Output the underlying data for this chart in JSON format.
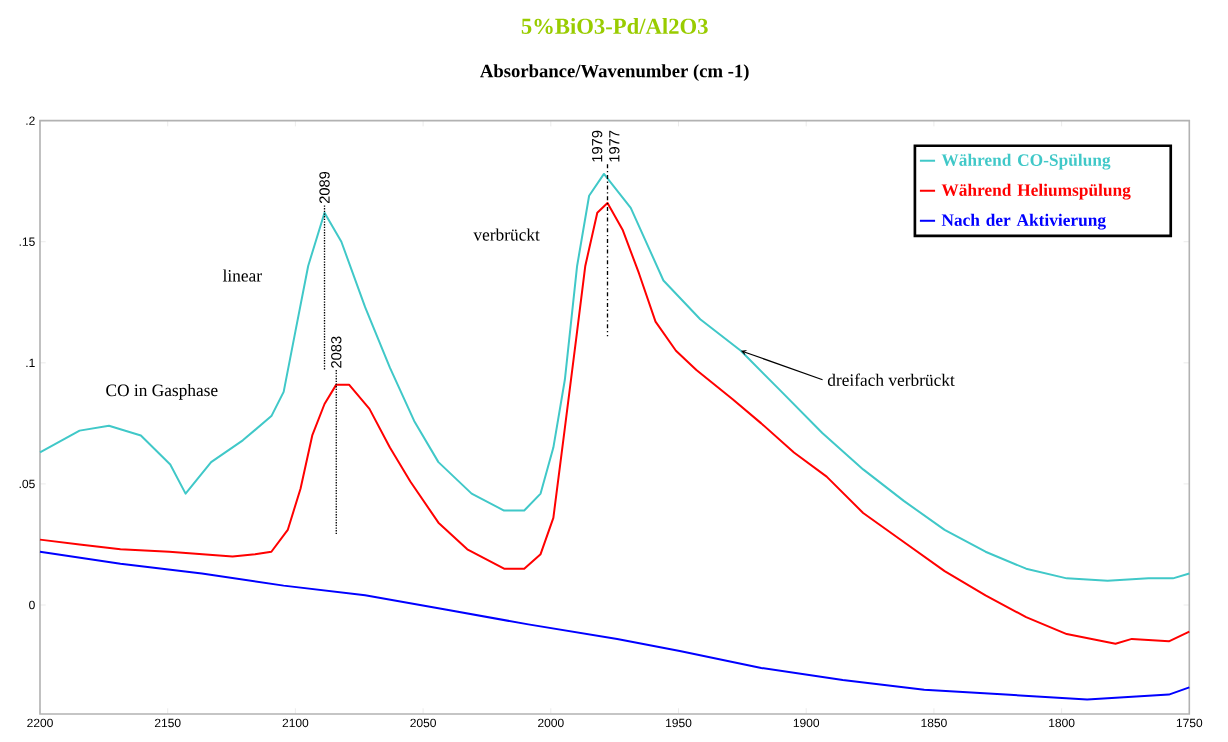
{
  "chart_data": {
    "type": "line",
    "title": "5%BiO3-Pd/Al2O3",
    "subtitle": "Absorbance/Wavenumber (cm -1)",
    "xlim": [
      2200,
      1750
    ],
    "xticks": [
      2200,
      2150,
      2100,
      2050,
      2000,
      1950,
      1900,
      1850,
      1800,
      1750
    ],
    "ylim": [
      -0.045,
      0.2
    ],
    "yticks": [
      {
        "value": 0,
        "label": "0"
      },
      {
        "value": 0.05,
        "label": ".05"
      },
      {
        "value": 0.1,
        "label": ".1"
      },
      {
        "value": 0.15,
        "label": ".15"
      },
      {
        "value": 0.2,
        "label": ".2"
      }
    ],
    "grid": false,
    "legend": "top right",
    "marker": "none",
    "line_style": "solid",
    "series": [
      {
        "name": "Während CO-Spülung",
        "color": "#40c8c8",
        "x": [
          2200,
          2184.5,
          2173,
          2160.5,
          2149,
          2143,
          2133,
          2120.6,
          2109.4,
          2104.6,
          2100,
          2095,
          2088.6,
          2082,
          2072.7,
          2063,
          2053.5,
          2044,
          2031,
          2018.3,
          2010.4,
          2004,
          1999,
          1994.5,
          1989.7,
          1985,
          1979.2,
          1968.7,
          1955.9,
          1941.5,
          1925.6,
          1909.6,
          1893.7,
          1877.7,
          1861.8,
          1845.8,
          1829.8,
          1813.9,
          1798,
          1782,
          1766,
          1756.4,
          1750
        ],
        "values": [
          0.063,
          0.072,
          0.074,
          0.07,
          0.058,
          0.046,
          0.059,
          0.068,
          0.078,
          0.088,
          0.113,
          0.14,
          0.162,
          0.15,
          0.123,
          0.098,
          0.076,
          0.059,
          0.046,
          0.039,
          0.039,
          0.046,
          0.065,
          0.093,
          0.14,
          0.169,
          0.178,
          0.164,
          0.134,
          0.118,
          0.105,
          0.088,
          0.071,
          0.056,
          0.043,
          0.031,
          0.022,
          0.015,
          0.011,
          0.01,
          0.011,
          0.011,
          0.013
        ]
      },
      {
        "name": "Während Heliumspülung",
        "color": "#ff0000",
        "x": [
          2200,
          2184.5,
          2168.5,
          2149.4,
          2124.6,
          2115.8,
          2109.4,
          2103,
          2098,
          2093.4,
          2088.6,
          2084,
          2079,
          2071,
          2063,
          2055,
          2044,
          2032.7,
          2018.3,
          2010.4,
          2004,
          1999,
          1994.5,
          1989.7,
          1986.5,
          1981.8,
          1977.8,
          1971.9,
          1965.5,
          1959,
          1951,
          1943,
          1928.8,
          1917.6,
          1904.8,
          1892,
          1877.7,
          1861.8,
          1845.8,
          1829.8,
          1813.9,
          1798,
          1778.9,
          1772.5,
          1758,
          1750
        ],
        "values": [
          0.027,
          0.025,
          0.023,
          0.022,
          0.02,
          0.021,
          0.022,
          0.031,
          0.048,
          0.07,
          0.083,
          0.091,
          0.091,
          0.081,
          0.065,
          0.051,
          0.034,
          0.023,
          0.015,
          0.015,
          0.021,
          0.036,
          0.073,
          0.113,
          0.14,
          0.162,
          0.166,
          0.155,
          0.137,
          0.117,
          0.105,
          0.097,
          0.085,
          0.075,
          0.063,
          0.053,
          0.038,
          0.026,
          0.014,
          0.004,
          -0.005,
          -0.012,
          -0.016,
          -0.014,
          -0.015,
          -0.011
        ]
      },
      {
        "name": "Nach der Aktivierung",
        "color": "#0000ff",
        "x": [
          2200,
          2168.5,
          2136.6,
          2104.6,
          2072.7,
          2040.7,
          2008.8,
          1974,
          1949.5,
          1917.6,
          1885.7,
          1853.8,
          1821.9,
          1790,
          1758,
          1750
        ],
        "values": [
          0.022,
          0.017,
          0.013,
          0.008,
          0.004,
          -0.002,
          -0.008,
          -0.014,
          -0.019,
          -0.026,
          -0.031,
          -0.035,
          -0.037,
          -0.039,
          -0.037,
          -0.034
        ]
      }
    ],
    "annotations": [
      {
        "text": "2089",
        "x": 2088.6,
        "y": 0.162
      },
      {
        "text": "2083",
        "x": 2084,
        "y": 0.091
      },
      {
        "text": "1979",
        "x": 1979.2,
        "y": 0.178
      },
      {
        "text": "1977",
        "x": 1977.8,
        "y": 0.166
      },
      "linear",
      "CO in Gasphase",
      "verbrückt",
      {
        "text": "dreifach verbrückt",
        "x": 1925.6,
        "y": 0.105
      }
    ]
  }
}
